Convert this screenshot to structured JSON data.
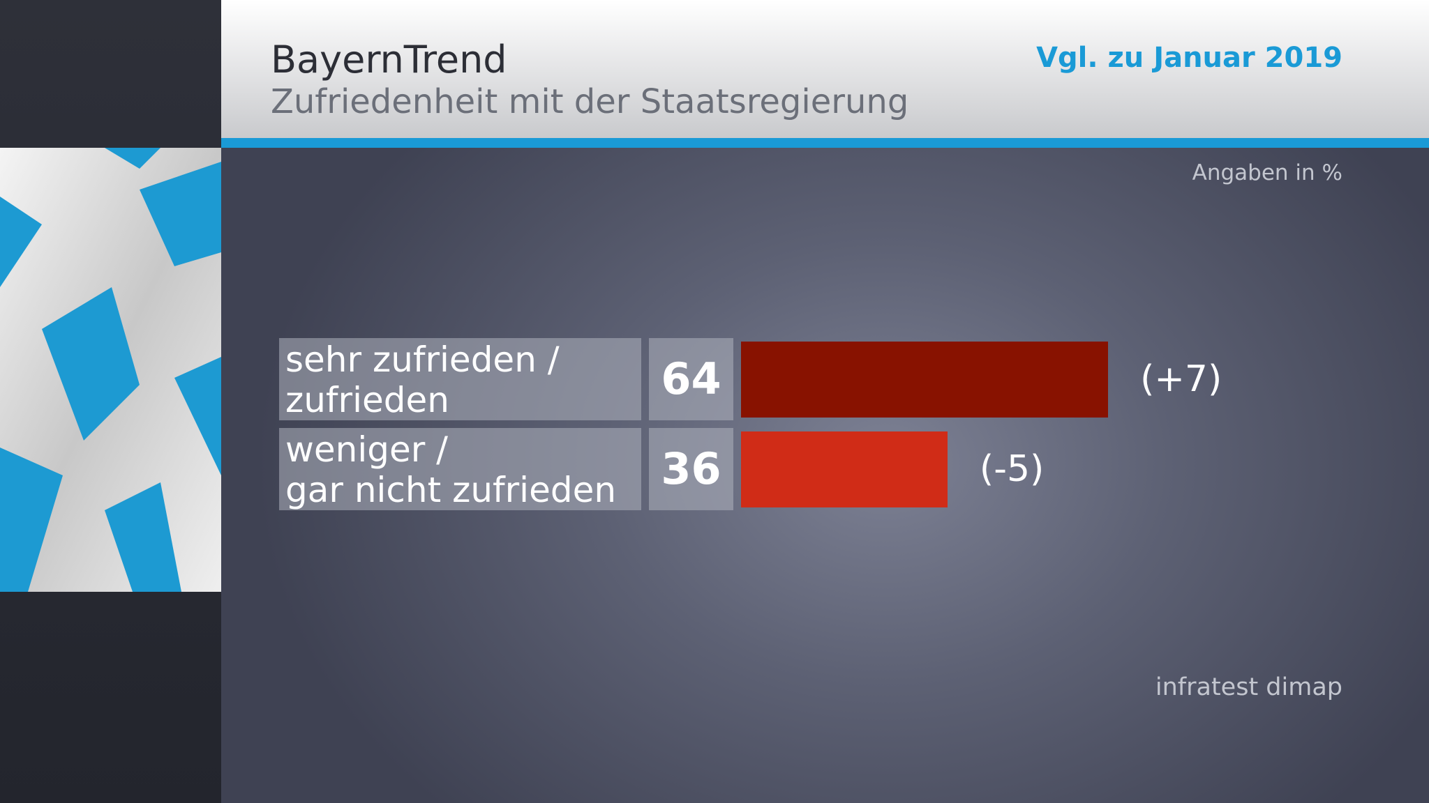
{
  "chart_data": {
    "type": "bar",
    "title": "BayernTrend",
    "subtitle": "Zufriedenheit mit der Staatsregierung",
    "comparison": "Vgl. zu Januar 2019",
    "unit_note": "Angaben in %",
    "source": "infratest dimap",
    "categories": [
      "sehr zufrieden /\nzufrieden",
      "weniger /\ngar nicht zufrieden"
    ],
    "values": [
      64,
      36
    ],
    "colors": [
      "#881200",
      "#d02c17"
    ],
    "change_labels": [
      "(+7)",
      "(-5)"
    ]
  }
}
